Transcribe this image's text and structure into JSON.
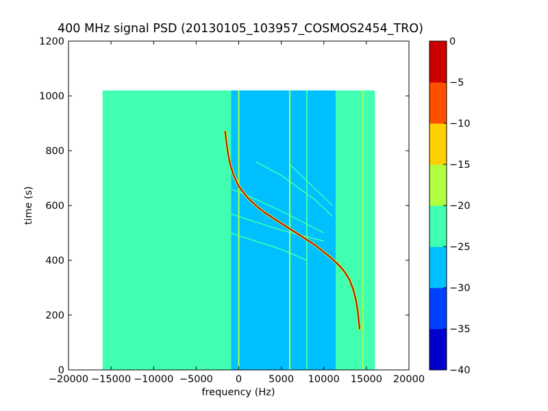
{
  "chart_data": {
    "type": "heatmap",
    "title": "400 MHz signal PSD (20130105_103957_COSMOS2454_TRO)",
    "xlabel": "frequency (Hz)",
    "ylabel": "time (s)",
    "xlim": [
      -20000,
      20000
    ],
    "ylim": [
      0,
      1200
    ],
    "xticks": [
      -20000,
      -15000,
      -10000,
      -5000,
      0,
      5000,
      10000,
      15000,
      20000
    ],
    "xtick_labels": [
      "−20000",
      "−15000",
      "−10000",
      "−5000",
      "0",
      "5000",
      "10000",
      "15000",
      "20000"
    ],
    "yticks": [
      0,
      200,
      400,
      600,
      800,
      1000,
      1200
    ],
    "ytick_labels": [
      "0",
      "200",
      "400",
      "600",
      "800",
      "1000",
      "1200"
    ],
    "data_extent": {
      "x": [
        -16000,
        16000
      ],
      "y": [
        0,
        1020
      ]
    },
    "colorbar": {
      "levels": [
        -40,
        -35,
        -30,
        -25,
        -20,
        -15,
        -10,
        -5,
        0
      ],
      "level_labels": [
        "−40",
        "−35",
        "−30",
        "−25",
        "−20",
        "−15",
        "−10",
        "−5",
        "0"
      ],
      "colors": [
        "#0000cd",
        "#0040ff",
        "#00c0ff",
        "#40ffb0",
        "#b0ff40",
        "#ffd000",
        "#ff5000",
        "#cd0000"
      ]
    },
    "regions": [
      {
        "x": [
          -16000,
          -900
        ],
        "y": [
          0,
          1020
        ],
        "level": -22.5
      },
      {
        "x": [
          -900,
          11400
        ],
        "y": [
          0,
          1020
        ],
        "level": -27.5
      },
      {
        "x": [
          11400,
          16000
        ],
        "y": [
          0,
          1020
        ],
        "level": -22.5
      }
    ],
    "main_signal": {
      "level": -2.5,
      "points": [
        [
          -1600,
          870
        ],
        [
          -1400,
          820
        ],
        [
          -1200,
          780
        ],
        [
          -1000,
          750
        ],
        [
          -600,
          710
        ],
        [
          0,
          670
        ],
        [
          1000,
          630
        ],
        [
          2000,
          600
        ],
        [
          3000,
          575
        ],
        [
          4000,
          555
        ],
        [
          5000,
          535
        ],
        [
          6000,
          515
        ],
        [
          7000,
          495
        ],
        [
          8000,
          475
        ],
        [
          9000,
          455
        ],
        [
          10000,
          430
        ],
        [
          11000,
          405
        ],
        [
          12000,
          375
        ],
        [
          12500,
          355
        ],
        [
          13000,
          330
        ],
        [
          13500,
          290
        ],
        [
          13800,
          250
        ],
        [
          14000,
          210
        ],
        [
          14100,
          180
        ],
        [
          14200,
          150
        ]
      ]
    },
    "vertical_lines": [
      {
        "x": 0,
        "level": -17.5
      },
      {
        "x": 6000,
        "level": -17.5
      },
      {
        "x": 8000,
        "level": -22.5
      },
      {
        "x": 11800,
        "level": -22.5
      },
      {
        "x": 14600,
        "level": -17.5
      }
    ],
    "faint_traces": [
      {
        "level": -22.5,
        "points": [
          [
            -5000,
            700
          ],
          [
            0,
            650
          ],
          [
            5000,
            580
          ],
          [
            10000,
            500
          ]
        ]
      },
      {
        "level": -22.5,
        "points": [
          [
            -4000,
            600
          ],
          [
            0,
            560
          ],
          [
            5000,
            510
          ],
          [
            10000,
            470
          ]
        ]
      },
      {
        "level": -22.5,
        "points": [
          [
            -3000,
            520
          ],
          [
            0,
            490
          ],
          [
            5000,
            440
          ],
          [
            8000,
            400
          ]
        ]
      },
      {
        "level": -22.5,
        "points": [
          [
            2000,
            760
          ],
          [
            5000,
            710
          ],
          [
            9000,
            620
          ],
          [
            11000,
            560
          ]
        ]
      },
      {
        "level": -22.5,
        "points": [
          [
            6000,
            750
          ],
          [
            8000,
            690
          ],
          [
            11000,
            600
          ]
        ]
      }
    ]
  }
}
